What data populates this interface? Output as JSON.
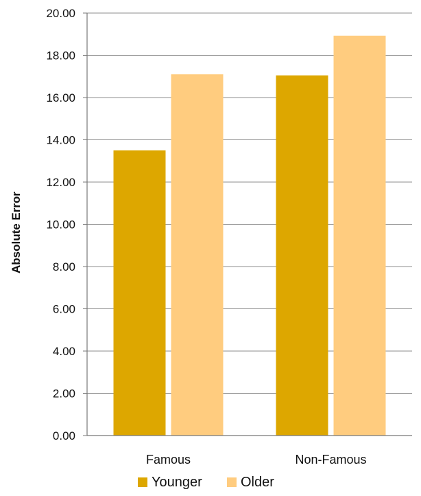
{
  "chart_data": {
    "type": "bar",
    "title": "",
    "xlabel": "",
    "ylabel": "Absolute Error",
    "categories": [
      "Famous",
      "Non-Famous"
    ],
    "series": [
      {
        "name": "Younger",
        "values": [
          13.5,
          17.05
        ],
        "color": "#DDA700"
      },
      {
        "name": "Older",
        "values": [
          17.1,
          18.93
        ],
        "color": "#FFCC7F"
      }
    ],
    "ylim": [
      0,
      20
    ],
    "yticks": [
      "0.00",
      "2.00",
      "4.00",
      "6.00",
      "8.00",
      "10.00",
      "12.00",
      "14.00",
      "16.00",
      "18.00",
      "20.00"
    ],
    "grid": true,
    "legend_position": "bottom"
  }
}
